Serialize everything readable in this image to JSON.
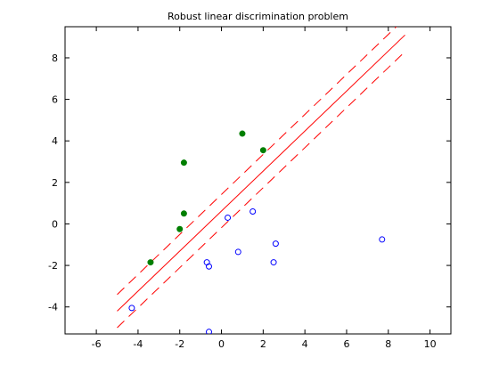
{
  "chart_data": {
    "type": "scatter",
    "title": "Robust linear discrimination problem",
    "xlabel": "",
    "ylabel": "",
    "xlim": [
      -7.5,
      11
    ],
    "ylim": [
      -5.3,
      9.5
    ],
    "xticks": [
      -6,
      -4,
      -2,
      0,
      2,
      4,
      6,
      8,
      10
    ],
    "yticks": [
      -4,
      -2,
      0,
      2,
      4,
      6,
      8
    ],
    "grid": false,
    "legend": "none",
    "series": [
      {
        "marker": "filled-circle",
        "color": "#007f00",
        "points": [
          {
            "x": -3.4,
            "y": -1.85
          },
          {
            "x": -2.0,
            "y": -0.25
          },
          {
            "x": -1.8,
            "y": 0.5
          },
          {
            "x": -1.8,
            "y": 2.95
          },
          {
            "x": 1.0,
            "y": 4.35
          },
          {
            "x": 2.0,
            "y": 3.55
          }
        ]
      },
      {
        "marker": "open-circle",
        "color": "#0000ff",
        "points": [
          {
            "x": -4.3,
            "y": -4.05
          },
          {
            "x": -0.7,
            "y": -1.85
          },
          {
            "x": -0.6,
            "y": -2.05
          },
          {
            "x": -0.6,
            "y": -5.2
          },
          {
            "x": 0.3,
            "y": 0.3
          },
          {
            "x": 0.8,
            "y": -1.35
          },
          {
            "x": 1.5,
            "y": 0.6
          },
          {
            "x": 2.5,
            "y": -1.85
          },
          {
            "x": 2.6,
            "y": -0.95
          },
          {
            "x": 7.7,
            "y": -0.75
          }
        ]
      }
    ],
    "lines": [
      {
        "style": "solid",
        "color": "#ff0000",
        "x": [
          -5.0,
          8.8
        ],
        "y": [
          -4.2,
          9.1
        ]
      },
      {
        "style": "dashed",
        "color": "#ff0000",
        "x": [
          -5.0,
          8.8
        ],
        "y": [
          -3.4,
          9.9
        ]
      },
      {
        "style": "dashed",
        "color": "#ff0000",
        "x": [
          -5.0,
          8.8
        ],
        "y": [
          -5.0,
          8.3
        ]
      }
    ]
  }
}
